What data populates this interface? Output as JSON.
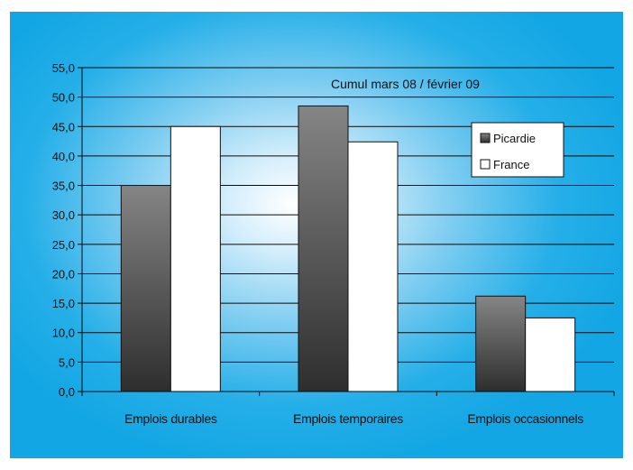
{
  "chart_data": {
    "type": "bar",
    "annotation": "Cumul mars 08 / février 09",
    "categories": [
      "Emplois durables",
      "Emplois temporaires",
      "Emplois occasionnels"
    ],
    "series": [
      {
        "name": "Picardie",
        "values": [
          35.0,
          48.5,
          16.2
        ],
        "color": "#555555"
      },
      {
        "name": "France",
        "values": [
          45.0,
          42.4,
          12.5
        ],
        "color": "#ffffff"
      }
    ],
    "ylim": [
      0,
      55
    ],
    "yticks": [
      "0,0",
      "5,0",
      "10,0",
      "15,0",
      "20,0",
      "25,0",
      "30,0",
      "35,0",
      "40,0",
      "45,0",
      "50,0",
      "55,0"
    ],
    "ytick_values": [
      0,
      5,
      10,
      15,
      20,
      25,
      30,
      35,
      40,
      45,
      50,
      55
    ],
    "grid": true,
    "legend_position": "right",
    "background_color": "#19a9e6"
  }
}
